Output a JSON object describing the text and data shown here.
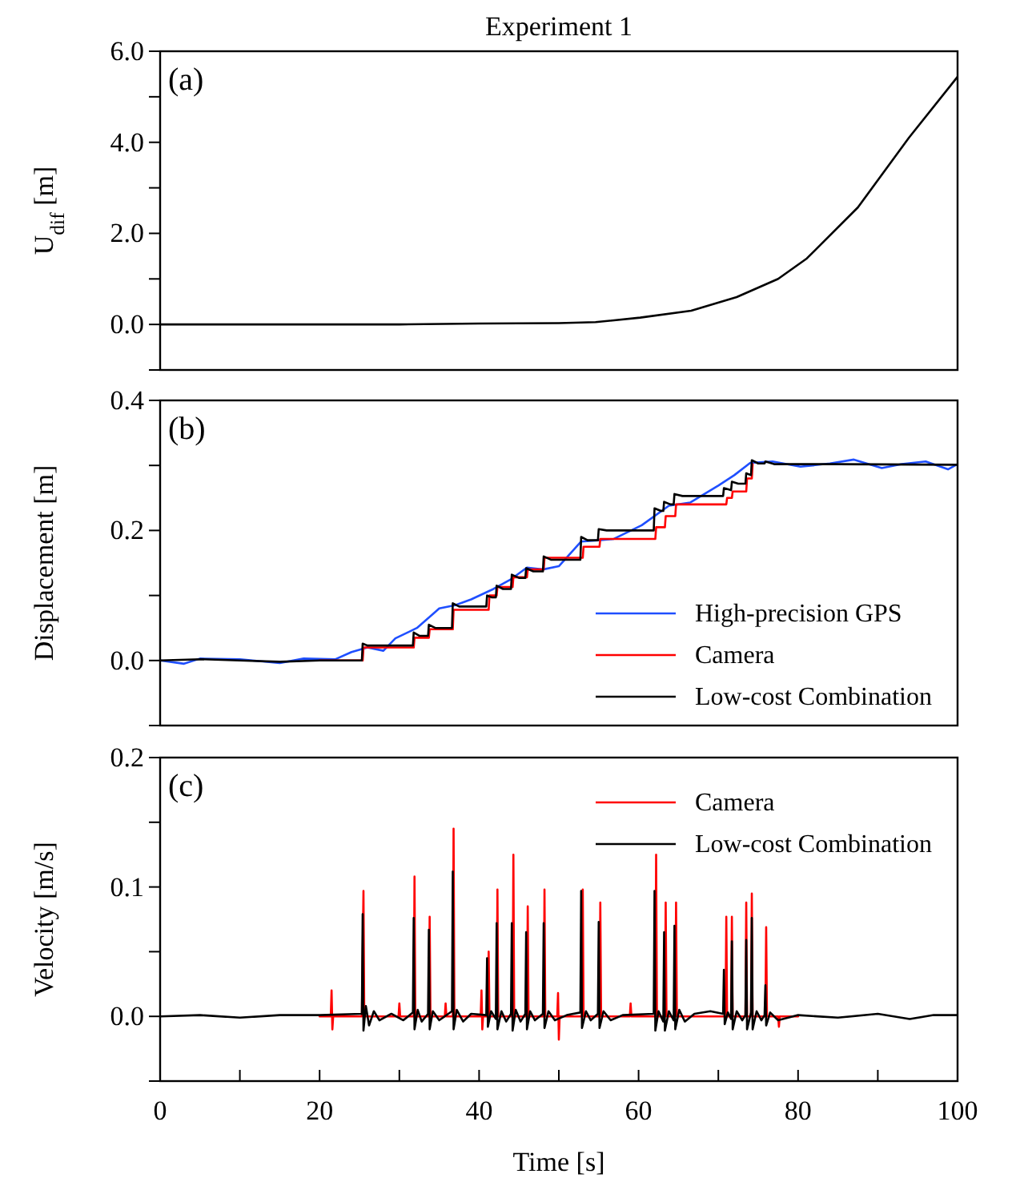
{
  "chart_data": [
    {
      "type": "line",
      "title": "Experiment 1",
      "ylabel": "U$_{dif}$ [m]",
      "annotations": [
        "(a)"
      ],
      "xlim": [
        0,
        100
      ],
      "ylim": [
        -1,
        6
      ],
      "yticks": [
        {
          "value": -1,
          "label": null
        },
        {
          "value": 0,
          "label": "0.0"
        },
        {
          "value": 1,
          "label": null
        },
        {
          "value": 2,
          "label": "2.0"
        },
        {
          "value": 3,
          "label": null
        },
        {
          "value": 4,
          "label": "4.0"
        },
        {
          "value": 5,
          "label": null
        },
        {
          "value": 6,
          "label": "6.0"
        }
      ],
      "tick_labels": "y",
      "legend": false,
      "series": [
        {
          "color": "#000000",
          "x": [
            0,
            10,
            20,
            30,
            40,
            50,
            54.6,
            60.2,
            66.6,
            72.3,
            77.5,
            81.1,
            87.5,
            93.9,
            100
          ],
          "values": [
            0,
            0,
            0,
            0,
            0.02,
            0.03,
            0.05,
            0.15,
            0.3,
            0.6,
            1.0,
            1.45,
            2.57,
            4.1,
            5.44
          ]
        }
      ]
    },
    {
      "type": "line",
      "ylabel": "Displacement [m]",
      "annotations": [
        "(b)"
      ],
      "xlim": [
        0,
        100
      ],
      "ylim": [
        -0.1,
        0.4
      ],
      "yticks": [
        {
          "value": -0.1,
          "label": null
        },
        {
          "value": 0,
          "label": "0.0"
        },
        {
          "value": 0.1,
          "label": null
        },
        {
          "value": 0.2,
          "label": "0.2"
        },
        {
          "value": 0.3,
          "label": null
        },
        {
          "value": 0.4,
          "label": "0.4"
        }
      ],
      "tick_labels": "y",
      "legend": "bottom right",
      "series": [
        {
          "name": "High-precision GPS",
          "color": "#1f4fff",
          "x": [
            0,
            3,
            5,
            10,
            15,
            18,
            22,
            24,
            26,
            28,
            29.5,
            32.2,
            35,
            37,
            39,
            41.8,
            44,
            46,
            48,
            50,
            52.8,
            55,
            56.9,
            60.4,
            63.8,
            66.5,
            70,
            72,
            74,
            76.8,
            80.3,
            84,
            87,
            90.5,
            93,
            96,
            98.8,
            100
          ],
          "values": [
            0,
            -0.005,
            0.003,
            0.002,
            -0.004,
            0.003,
            0.002,
            0.013,
            0.02,
            0.015,
            0.034,
            0.05,
            0.08,
            0.085,
            0.094,
            0.11,
            0.125,
            0.143,
            0.14,
            0.145,
            0.183,
            0.185,
            0.187,
            0.208,
            0.238,
            0.243,
            0.269,
            0.285,
            0.304,
            0.306,
            0.298,
            0.303,
            0.309,
            0.296,
            0.302,
            0.306,
            0.294,
            0.302
          ]
        },
        {
          "name": "Camera",
          "color": "#ff0000",
          "x": [
            20,
            25.4,
            25.5,
            31.8,
            31.9,
            33.7,
            33.8,
            36.7,
            36.8,
            41.2,
            41.3,
            42.2,
            42.3,
            44.2,
            44.3,
            46,
            46.1,
            48.1,
            48.2,
            53,
            53.1,
            55.1,
            55.2,
            62.1,
            62.2,
            63.3,
            63.4,
            64.6,
            64.7,
            71,
            71.1,
            71.7,
            71.8,
            73.5,
            73.6,
            74.2,
            74.3
          ],
          "values": [
            0,
            0,
            0.02,
            0.02,
            0.035,
            0.035,
            0.048,
            0.048,
            0.078,
            0.078,
            0.1,
            0.1,
            0.113,
            0.113,
            0.128,
            0.128,
            0.14,
            0.14,
            0.158,
            0.158,
            0.175,
            0.175,
            0.187,
            0.187,
            0.205,
            0.205,
            0.222,
            0.222,
            0.24,
            0.24,
            0.25,
            0.25,
            0.26,
            0.26,
            0.28,
            0.28,
            0.302
          ]
        },
        {
          "name": "Low-cost Combination",
          "color": "#000000",
          "x": [
            0,
            5,
            10,
            15,
            20,
            25.3,
            25.4,
            26,
            31.7,
            31.8,
            32.5,
            33.6,
            33.7,
            34.5,
            36.6,
            36.7,
            37.5,
            40.9,
            41,
            41.6,
            42.1,
            42.2,
            43,
            44,
            44.1,
            45,
            45.8,
            45.9,
            46.8,
            48,
            48.1,
            49,
            52.7,
            52.8,
            53.6,
            54.9,
            55,
            56,
            61.9,
            62,
            62.8,
            63.1,
            63.2,
            64,
            64.4,
            64.5,
            65.5,
            70.6,
            70.7,
            71.6,
            71.7,
            72.5,
            73.4,
            73.5,
            74.1,
            74.2,
            75,
            75.8,
            75.9,
            77,
            85,
            100
          ],
          "values": [
            0,
            0.002,
            0,
            -0.002,
            0,
            0,
            0.026,
            0.023,
            0.023,
            0.043,
            0.038,
            0.038,
            0.055,
            0.05,
            0.05,
            0.088,
            0.083,
            0.083,
            0.1,
            0.097,
            0.097,
            0.115,
            0.11,
            0.11,
            0.132,
            0.127,
            0.127,
            0.142,
            0.137,
            0.137,
            0.16,
            0.155,
            0.155,
            0.19,
            0.185,
            0.185,
            0.202,
            0.2,
            0.2,
            0.234,
            0.23,
            0.23,
            0.244,
            0.24,
            0.24,
            0.256,
            0.253,
            0.253,
            0.265,
            0.262,
            0.275,
            0.272,
            0.272,
            0.288,
            0.285,
            0.308,
            0.303,
            0.303,
            0.306,
            0.302,
            0.302,
            0.301
          ]
        }
      ]
    },
    {
      "type": "line",
      "ylabel": "Velocity [m/s]",
      "xlabel": "Time [s]",
      "annotations": [
        "(c)"
      ],
      "xlim": [
        0,
        100
      ],
      "xticks": [
        0,
        {
          "value": 10,
          "label": null
        },
        20,
        {
          "value": 30,
          "label": null
        },
        40,
        {
          "value": 50,
          "label": null
        },
        60,
        {
          "value": 70,
          "label": null
        },
        80,
        {
          "value": 90,
          "label": null
        },
        100
      ],
      "ylim": [
        -0.05,
        0.2
      ],
      "yticks": [
        {
          "value": -0.05,
          "label": null
        },
        {
          "value": 0,
          "label": "0.0"
        },
        {
          "value": 0.05,
          "label": null
        },
        {
          "value": 0.1,
          "label": "0.1"
        },
        {
          "value": 0.15,
          "label": null
        },
        {
          "value": 0.2,
          "label": "0.2"
        }
      ],
      "legend": "top right",
      "series": [
        {
          "name": "Camera",
          "color": "#ff0000",
          "x": [
            20,
            21.4,
            21.5,
            21.6,
            21.7,
            25.3,
            25.5,
            25.6,
            29.9,
            30,
            30.1,
            31.8,
            31.9,
            32,
            33.7,
            33.8,
            33.9,
            35.7,
            35.8,
            35.9,
            36.7,
            36.8,
            36.9,
            40.2,
            40.3,
            40.4,
            40.5,
            41.1,
            41.2,
            41.3,
            42.2,
            42.3,
            42.4,
            44.2,
            44.3,
            44.4,
            46,
            46.1,
            46.2,
            48.1,
            48.2,
            48.3,
            49.8,
            49.9,
            50,
            50.1,
            52.9,
            53,
            53.1,
            55.1,
            55.2,
            55.3,
            58.9,
            59,
            59.1,
            62.1,
            62.2,
            62.3,
            63.3,
            63.4,
            63.5,
            64.6,
            64.7,
            64.8,
            70.9,
            71,
            71.1,
            71.6,
            71.7,
            71.8,
            73.4,
            73.5,
            73.6,
            74.1,
            74.2,
            74.3,
            75.9,
            76,
            76.1,
            77.5,
            77.6,
            77.7,
            80
          ],
          "values": [
            0,
            0,
            0.02,
            -0.01,
            0,
            0,
            0.097,
            0,
            0,
            0.01,
            0,
            0,
            0.108,
            0,
            0,
            0.077,
            0,
            0,
            0.01,
            0,
            0,
            0.145,
            0,
            0,
            0.02,
            -0.01,
            0,
            0,
            0.05,
            0,
            0,
            0.098,
            0,
            0,
            0.125,
            0,
            0,
            0.085,
            0,
            0,
            0.098,
            0,
            0,
            0.018,
            -0.018,
            0,
            0,
            0.098,
            0,
            0,
            0.088,
            0,
            0,
            0.01,
            0,
            0,
            0.125,
            0,
            0,
            0.088,
            0,
            0,
            0.088,
            0,
            0,
            0.077,
            0,
            0,
            0.077,
            0,
            0,
            0.088,
            0,
            0,
            0.095,
            0,
            0,
            0.069,
            0,
            0,
            -0.008,
            0,
            0
          ]
        },
        {
          "name": "Low-cost Combination",
          "color": "#000000",
          "x": [
            0,
            5,
            10,
            15,
            20,
            25.3,
            25.4,
            25.5,
            25.8,
            26.2,
            26.8,
            27.5,
            29,
            30.5,
            31.7,
            31.8,
            31.9,
            32.3,
            32.8,
            33.6,
            33.7,
            33.8,
            34.2,
            35,
            36.6,
            36.7,
            36.8,
            37.2,
            38,
            39,
            40.9,
            41,
            41.1,
            41.5,
            42.1,
            42.2,
            42.3,
            42.8,
            43.4,
            44,
            44.1,
            44.2,
            44.6,
            45.2,
            45.8,
            45.9,
            46,
            46.4,
            47,
            48,
            48.1,
            48.2,
            48.7,
            49.5,
            51,
            52.7,
            52.8,
            52.9,
            53.4,
            54,
            54.9,
            55,
            55.1,
            55.6,
            56.5,
            58,
            61.9,
            62,
            62.1,
            62.5,
            63.1,
            63.2,
            63.3,
            63.8,
            64.4,
            64.5,
            64.6,
            65.1,
            65.8,
            67,
            69,
            70.6,
            70.7,
            70.8,
            71.2,
            71.6,
            71.7,
            71.8,
            72.3,
            73,
            73.4,
            73.5,
            73.6,
            74.1,
            74.2,
            74.3,
            74.8,
            75.4,
            75.8,
            75.9,
            76,
            76.5,
            77.5,
            80,
            85,
            90,
            94,
            97,
            100
          ],
          "values": [
            0,
            0.001,
            -0.001,
            0.001,
            0.001,
            0.002,
            0.079,
            -0.011,
            0.008,
            -0.007,
            0.004,
            -0.003,
            0.002,
            -0.003,
            0.003,
            0.076,
            -0.01,
            0.005,
            -0.004,
            0.002,
            0.067,
            -0.01,
            0.004,
            -0.003,
            0.004,
            0.112,
            -0.01,
            0.005,
            -0.004,
            0.002,
            0.001,
            0.045,
            -0.008,
            0.004,
            -0.002,
            0.072,
            -0.01,
            0.004,
            -0.004,
            0.002,
            0.072,
            -0.011,
            0.005,
            -0.004,
            0.002,
            0.065,
            -0.01,
            0.004,
            -0.003,
            0.002,
            0.072,
            -0.009,
            0.004,
            -0.003,
            0.001,
            0.003,
            0.097,
            -0.009,
            0.004,
            -0.003,
            0.002,
            0.073,
            -0.009,
            0.004,
            -0.003,
            0.001,
            0.002,
            0.097,
            -0.011,
            0.004,
            -0.004,
            0.065,
            -0.011,
            0.004,
            -0.003,
            0.07,
            -0.01,
            0.005,
            -0.004,
            0.002,
            0.004,
            0.002,
            0.036,
            -0.006,
            0.003,
            -0.002,
            0.058,
            -0.01,
            0.004,
            -0.003,
            0.001,
            0.059,
            -0.01,
            0.003,
            0.076,
            -0.01,
            0.004,
            -0.003,
            0.001,
            0.024,
            -0.007,
            0.003,
            -0.003,
            0.001,
            -0.001,
            0.002,
            -0.002,
            0.001,
            0.001
          ]
        }
      ]
    }
  ]
}
